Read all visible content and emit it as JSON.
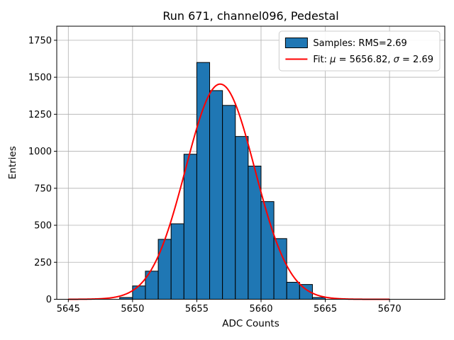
{
  "chart_data": {
    "type": "histogram",
    "title": "Run 671, channel096, Pedestal",
    "xlabel": "ADC Counts",
    "ylabel": "Entries",
    "xlim": [
      5644.1,
      5674.3
    ],
    "ylim": [
      0,
      1845
    ],
    "xticks": [
      5645,
      5650,
      5655,
      5660,
      5665,
      5670
    ],
    "yticks": [
      0,
      250,
      500,
      750,
      1000,
      1250,
      1500,
      1750
    ],
    "grid": true,
    "grid_color": "#b0b0b0",
    "bar_color": "#1f77b4",
    "bar_edge_color": "#000000",
    "bin_start": 5649,
    "bin_width": 1,
    "counts": [
      12,
      90,
      190,
      405,
      510,
      980,
      1600,
      1410,
      1310,
      1100,
      900,
      660,
      410,
      115,
      100,
      12
    ],
    "fit": {
      "mu": 5656.82,
      "sigma": 2.69,
      "amplitude": 1454,
      "color": "#ff0000",
      "x_range": [
        5645,
        5670
      ]
    },
    "legend": {
      "position": "upper-right",
      "items": [
        {
          "swatch": "patch",
          "color": "#1f77b4",
          "label": "Samples: RMS=2.69"
        },
        {
          "swatch": "line",
          "color": "#ff0000",
          "label": "Fit: μ = 5656.82, σ = 2.69"
        }
      ]
    }
  }
}
